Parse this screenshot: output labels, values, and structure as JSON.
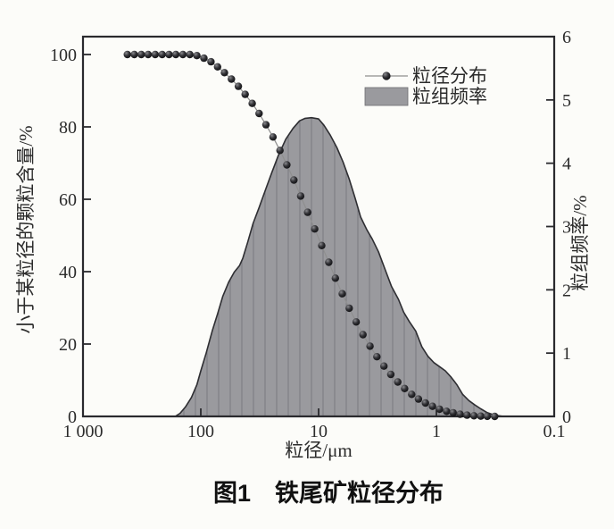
{
  "figure": {
    "caption": "图1　铁尾矿粒径分布"
  },
  "chart_data": {
    "type": "line",
    "title": "图1 铁尾矿粒径分布",
    "x_axis": {
      "label": "粒径/μm",
      "scale": "log",
      "direction": "reversed",
      "range": [
        1000,
        0.1
      ],
      "tick_values": [
        1000,
        100,
        10,
        1,
        0.1
      ],
      "tick_labels": [
        "1 000",
        "100",
        "10",
        "1",
        "0.1"
      ]
    },
    "y_axis_left": {
      "label": "小于某粒径的颗粒含量/%",
      "range": [
        0,
        105
      ],
      "tick_values": [
        0,
        20,
        40,
        60,
        80,
        100
      ]
    },
    "y_axis_right": {
      "label": "粒组频率/%",
      "range": [
        0,
        6
      ],
      "tick_values": [
        0,
        1,
        2,
        3,
        4,
        5,
        6
      ]
    },
    "legend": {
      "position": "upper-right-inside",
      "items": [
        {
          "label": "粒径分布",
          "swatch": "line-ball-marker"
        },
        {
          "label": "粒组频率",
          "swatch": "filled-area"
        }
      ]
    },
    "series": [
      {
        "name": "粒径分布",
        "type": "line",
        "y_axis": "left",
        "marker": "ball",
        "points_d_um_vs_percent": [
          [
            420,
            100
          ],
          [
            367,
            100
          ],
          [
            320,
            100
          ],
          [
            280,
            100
          ],
          [
            244,
            100
          ],
          [
            213,
            100
          ],
          [
            186,
            100
          ],
          [
            163,
            100
          ],
          [
            142,
            100
          ],
          [
            124,
            100
          ],
          [
            108,
            99.7
          ],
          [
            94,
            99.0
          ],
          [
            82,
            98.0
          ],
          [
            72,
            96.6
          ],
          [
            63,
            95.0
          ],
          [
            55,
            93.2
          ],
          [
            48,
            91.2
          ],
          [
            42,
            89.0
          ],
          [
            36.6,
            86.5
          ],
          [
            32,
            83.7
          ],
          [
            28,
            80.6
          ],
          [
            24.4,
            77.2
          ],
          [
            21.3,
            73.5
          ],
          [
            18.6,
            69.5
          ],
          [
            16.2,
            65.3
          ],
          [
            14.2,
            60.9
          ],
          [
            12.4,
            56.4
          ],
          [
            10.8,
            51.8
          ],
          [
            9.4,
            47.2
          ],
          [
            8.2,
            42.6
          ],
          [
            7.2,
            38.2
          ],
          [
            6.3,
            33.9
          ],
          [
            5.5,
            29.9
          ],
          [
            4.8,
            26.1
          ],
          [
            4.2,
            22.6
          ],
          [
            3.66,
            19.4
          ],
          [
            3.2,
            16.5
          ],
          [
            2.79,
            13.9
          ],
          [
            2.44,
            11.6
          ],
          [
            2.13,
            9.5
          ],
          [
            1.86,
            7.7
          ],
          [
            1.62,
            6.1
          ],
          [
            1.42,
            4.8
          ],
          [
            1.24,
            3.7
          ],
          [
            1.08,
            2.8
          ],
          [
            0.94,
            2.0
          ],
          [
            0.82,
            1.4
          ],
          [
            0.72,
            1.0
          ],
          [
            0.63,
            0.6
          ],
          [
            0.55,
            0.35
          ],
          [
            0.48,
            0.18
          ],
          [
            0.42,
            0.07
          ],
          [
            0.37,
            0.02
          ],
          [
            0.32,
            0
          ]
        ]
      },
      {
        "name": "粒组频率",
        "type": "area",
        "y_axis": "right",
        "hatch": "vertical",
        "points_d_um_vs_percent": [
          [
            165,
            0
          ],
          [
            150,
            0.05
          ],
          [
            135,
            0.15
          ],
          [
            120,
            0.3
          ],
          [
            108,
            0.5
          ],
          [
            100,
            0.72
          ],
          [
            90,
            1.0
          ],
          [
            80,
            1.35
          ],
          [
            72,
            1.62
          ],
          [
            65,
            1.9
          ],
          [
            58,
            2.12
          ],
          [
            52,
            2.28
          ],
          [
            47,
            2.38
          ],
          [
            44,
            2.5
          ],
          [
            40,
            2.75
          ],
          [
            36,
            3.05
          ],
          [
            32,
            3.3
          ],
          [
            28,
            3.6
          ],
          [
            25,
            3.85
          ],
          [
            22,
            4.12
          ],
          [
            19,
            4.38
          ],
          [
            16.5,
            4.55
          ],
          [
            14.5,
            4.67
          ],
          [
            13,
            4.71
          ],
          [
            11.5,
            4.72
          ],
          [
            10,
            4.7
          ],
          [
            9,
            4.6
          ],
          [
            8,
            4.45
          ],
          [
            7,
            4.25
          ],
          [
            6.2,
            4.02
          ],
          [
            5.5,
            3.75
          ],
          [
            4.9,
            3.45
          ],
          [
            4.4,
            3.15
          ],
          [
            3.9,
            2.95
          ],
          [
            3.5,
            2.8
          ],
          [
            3.1,
            2.6
          ],
          [
            2.7,
            2.3
          ],
          [
            2.4,
            2.05
          ],
          [
            2.1,
            1.85
          ],
          [
            1.9,
            1.65
          ],
          [
            1.7,
            1.5
          ],
          [
            1.5,
            1.35
          ],
          [
            1.33,
            1.1
          ],
          [
            1.18,
            0.95
          ],
          [
            1.05,
            0.85
          ],
          [
            0.93,
            0.78
          ],
          [
            0.84,
            0.72
          ],
          [
            0.75,
            0.62
          ],
          [
            0.67,
            0.5
          ],
          [
            0.6,
            0.35
          ],
          [
            0.53,
            0.25
          ],
          [
            0.47,
            0.18
          ],
          [
            0.42,
            0.12
          ],
          [
            0.37,
            0.06
          ],
          [
            0.32,
            0.02
          ],
          [
            0.27,
            0
          ]
        ]
      }
    ],
    "colors": {
      "area_fill": "#9a9a9e",
      "area_edge": "#2e2e32",
      "hatch_line": "#797980",
      "curve_line": "#8f8f8f",
      "marker_dark": "#08080a",
      "axis": "#2a2a2e",
      "text": "#2b2b2b",
      "background": "#fcfcf9"
    }
  }
}
